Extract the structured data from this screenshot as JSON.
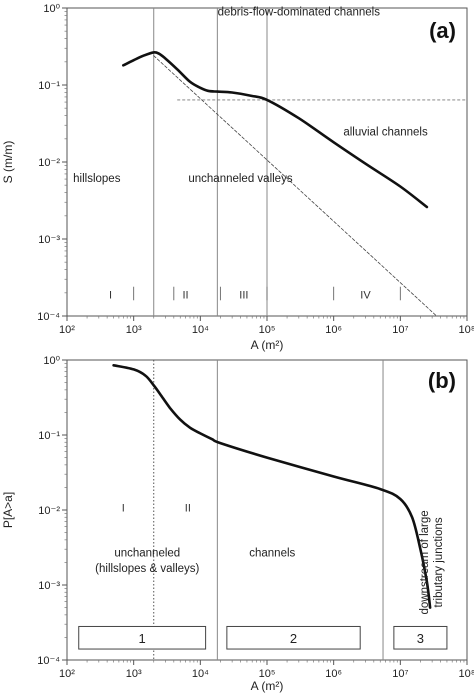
{
  "chart_data": [
    {
      "type": "line",
      "panel_label": "(a)",
      "xlabel": "A (m²)",
      "ylabel": "S (m/m)",
      "xscale": "log",
      "yscale": "log",
      "xlim": [
        100,
        100000000
      ],
      "ylim": [
        0.0001,
        1
      ],
      "x_tick_labels": [
        "10²",
        "10³",
        "10⁴",
        "10⁵",
        "10⁶",
        "10⁷",
        "10⁸"
      ],
      "y_tick_labels": [
        "10⁰",
        "10⁻¹",
        "10⁻²",
        "10⁻³",
        "10⁻⁴"
      ],
      "series": [
        {
          "style": "solid-thick",
          "x": [
            700,
            1000,
            1400,
            2000,
            2400,
            3000,
            4500,
            7000,
            10000,
            13000,
            18000,
            30000,
            60000,
            100000,
            300000,
            1000000,
            3000000,
            10000000,
            25000000
          ],
          "y": [
            0.18,
            0.21,
            0.24,
            0.265,
            0.255,
            0.22,
            0.16,
            0.11,
            0.092,
            0.084,
            0.082,
            0.08,
            0.072,
            0.064,
            0.037,
            0.018,
            0.0095,
            0.0048,
            0.0026
          ]
        },
        {
          "style": "thin-dashed",
          "x": [
            2000,
            35000000
          ],
          "y": [
            0.24,
            0.0001
          ]
        }
      ],
      "reference_lines": [
        {
          "orientation": "vertical",
          "x": 2000,
          "style": "solid-gray"
        },
        {
          "orientation": "vertical",
          "x": 18000,
          "style": "solid-gray"
        },
        {
          "orientation": "vertical",
          "x": 100000,
          "style": "solid-gray"
        },
        {
          "orientation": "horizontal",
          "y": 0.064,
          "x_from": 4500,
          "style": "dashed-gray"
        }
      ],
      "annotations": [
        {
          "text": "debris-flow-dominated channels",
          "x": 300000,
          "y": 0.8
        },
        {
          "text": "alluvial channels",
          "x": 6000000,
          "y": 0.022
        },
        {
          "text": "hillslopes",
          "x": 280,
          "y": 0.0055
        },
        {
          "text": "unchanneled valleys",
          "x": 40000,
          "y": 0.0055
        }
      ],
      "regions": [
        {
          "label": "I",
          "x": 450
        },
        {
          "label": "II",
          "x": 6000
        },
        {
          "label": "III",
          "x": 45000
        },
        {
          "label": "IV",
          "x": 3000000
        }
      ],
      "region_dividers_x": [
        1000,
        4000,
        20000,
        100000,
        1000000,
        10000000
      ]
    },
    {
      "type": "line",
      "panel_label": "(b)",
      "xlabel": "A (m²)",
      "ylabel": "P[A>a]",
      "xscale": "log",
      "yscale": "log",
      "xlim": [
        100,
        100000000
      ],
      "ylim": [
        0.0001,
        1
      ],
      "x_tick_labels": [
        "10²",
        "10³",
        "10⁴",
        "10⁵",
        "10⁶",
        "10⁷",
        "10⁸"
      ],
      "y_tick_labels": [
        "10⁰",
        "10⁻¹",
        "10⁻²",
        "10⁻³",
        "10⁻⁴"
      ],
      "series": [
        {
          "style": "solid-thick",
          "x": [
            500,
            1000,
            1500,
            2000,
            2500,
            3500,
            5000,
            7000,
            10000,
            15000,
            20000,
            100000,
            1000000,
            5000000,
            10000000,
            15000000,
            20000000,
            25000000,
            28000000
          ],
          "y": [
            0.85,
            0.75,
            0.62,
            0.46,
            0.35,
            0.23,
            0.16,
            0.125,
            0.105,
            0.088,
            0.078,
            0.05,
            0.028,
            0.019,
            0.014,
            0.008,
            0.003,
            0.0011,
            0.0005
          ]
        }
      ],
      "reference_lines": [
        {
          "orientation": "vertical",
          "x": 2000,
          "style": "dotted"
        },
        {
          "orientation": "vertical",
          "x": 18000,
          "style": "solid-gray"
        },
        {
          "orientation": "vertical",
          "x": 5500000,
          "style": "solid-gray"
        }
      ],
      "annotations": [
        {
          "text": "I",
          "x": 700,
          "y": 0.0095
        },
        {
          "text": "II",
          "x": 6500,
          "y": 0.0095
        },
        {
          "text": "unchanneled",
          "x": 1600,
          "y": 0.0024
        },
        {
          "text": "(hillslopes & valleys)",
          "x": 1600,
          "y": 0.0015
        },
        {
          "text": "channels",
          "x": 120000,
          "y": 0.0024
        },
        {
          "text": "downstream of large",
          "x": 60000000,
          "y": 0.002,
          "rotation": -90
        },
        {
          "text": "tributary junctions",
          "x": 60000000,
          "y": 0.002,
          "rotation": -90
        }
      ],
      "boxes": [
        {
          "label": "1",
          "x_from": 150,
          "x_to": 12000
        },
        {
          "label": "2",
          "x_from": 25000,
          "x_to": 2500000
        },
        {
          "label": "3",
          "x_from": 8000000,
          "x_to": 50000000
        }
      ]
    }
  ]
}
